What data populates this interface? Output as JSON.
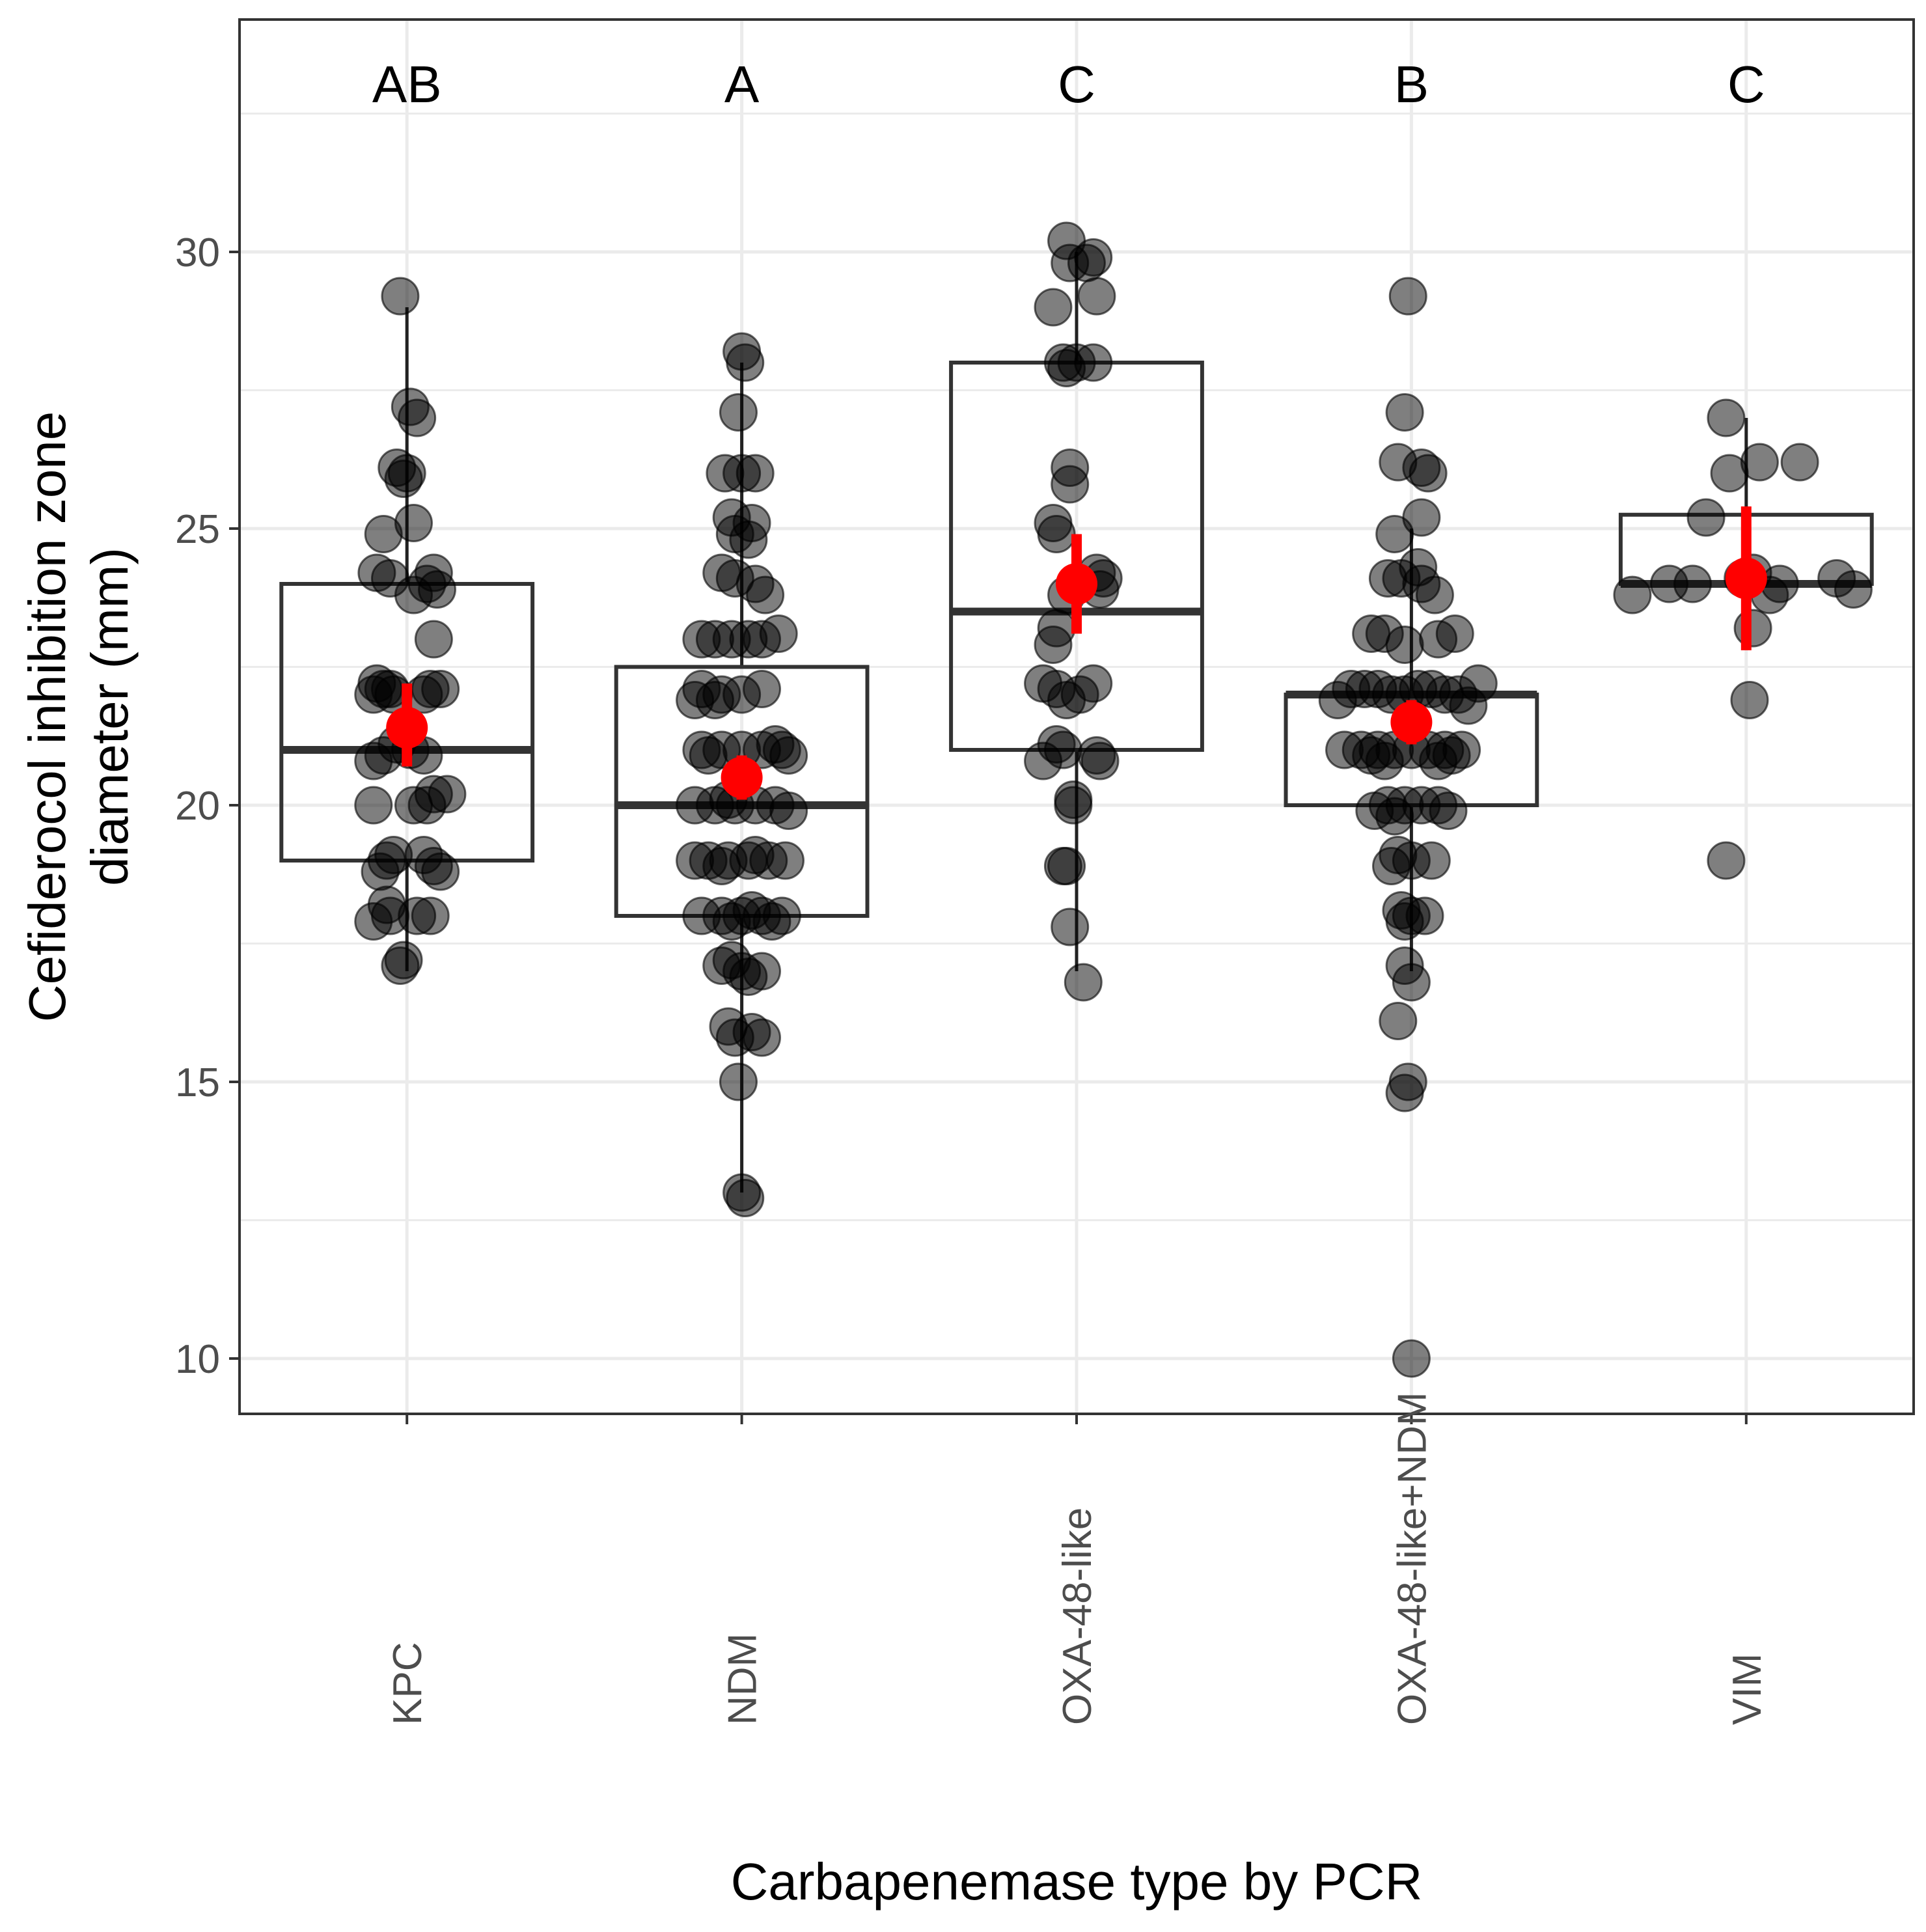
{
  "chart_data": {
    "type": "boxplot",
    "title": "",
    "xlabel": "Carbapenemase type by PCR",
    "ylabel_line1": "Cefiderocol inhibition zone",
    "ylabel_line2": "diameter (mm)",
    "ylim": [
      9,
      34.2
    ],
    "yticks": [
      10,
      15,
      20,
      25,
      30
    ],
    "ytick_labels": [
      "10",
      "15",
      "20",
      "25",
      "30"
    ],
    "grid": true,
    "categories": [
      "KPC",
      "NDM",
      "OXA-48-like",
      "OXA-48-like+NDM",
      "VIM"
    ],
    "significance_letters": [
      "AB",
      "A",
      "C",
      "B",
      "C"
    ],
    "boxes": [
      {
        "q1": 19,
        "median": 21,
        "q3": 24,
        "whisker_low": 17,
        "whisker_high": 29
      },
      {
        "q1": 18,
        "median": 20,
        "q3": 22.5,
        "whisker_low": 13,
        "whisker_high": 28
      },
      {
        "q1": 21,
        "median": 23.5,
        "q3": 28,
        "whisker_low": 17,
        "whisker_high": 30
      },
      {
        "q1": 20,
        "median": 22,
        "q3": 22,
        "whisker_low": 17,
        "whisker_high": 25
      },
      {
        "q1": 24,
        "median": 24,
        "q3": 25.25,
        "whisker_low": 24,
        "whisker_high": 27
      }
    ],
    "means": [
      {
        "mean": 21.4,
        "ci_low": 20.7,
        "ci_high": 22.2
      },
      {
        "mean": 20.5,
        "ci_low": 20.1,
        "ci_high": 20.9
      },
      {
        "mean": 24.0,
        "ci_low": 23.1,
        "ci_high": 24.9
      },
      {
        "mean": 21.5,
        "ci_low": 21.1,
        "ci_high": 21.9
      },
      {
        "mean": 24.1,
        "ci_low": 22.8,
        "ci_high": 25.4
      }
    ],
    "points": [
      [
        [
          -0.02,
          29.2
        ],
        [
          0.01,
          27.2
        ],
        [
          0.03,
          27.0
        ],
        [
          -0.03,
          26.1
        ],
        [
          0.0,
          26.0
        ],
        [
          -0.01,
          25.9
        ],
        [
          0.02,
          25.1
        ],
        [
          -0.07,
          24.9
        ],
        [
          -0.09,
          24.2
        ],
        [
          0.08,
          24.2
        ],
        [
          -0.05,
          24.1
        ],
        [
          0.06,
          24.0
        ],
        [
          0.09,
          23.9
        ],
        [
          0.02,
          23.8
        ],
        [
          0.08,
          23.0
        ],
        [
          -0.09,
          22.2
        ],
        [
          -0.07,
          22.1
        ],
        [
          -0.05,
          22.1
        ],
        [
          0.1,
          22.1
        ],
        [
          0.07,
          22.1
        ],
        [
          -0.1,
          22.0
        ],
        [
          -0.04,
          22.0
        ],
        [
          0.05,
          22.0
        ],
        [
          -0.03,
          21.1
        ],
        [
          0.01,
          21.0
        ],
        [
          -0.07,
          20.9
        ],
        [
          0.05,
          20.9
        ],
        [
          -0.1,
          20.8
        ],
        [
          0.08,
          20.2
        ],
        [
          0.12,
          20.2
        ],
        [
          -0.1,
          20.0
        ],
        [
          0.02,
          20.0
        ],
        [
          0.06,
          20.0
        ],
        [
          -0.04,
          19.1
        ],
        [
          0.05,
          19.1
        ],
        [
          -0.06,
          19.0
        ],
        [
          0.08,
          18.9
        ],
        [
          -0.08,
          18.8
        ],
        [
          0.1,
          18.8
        ],
        [
          -0.06,
          18.2
        ],
        [
          -0.1,
          17.9
        ],
        [
          -0.05,
          18.0
        ],
        [
          0.03,
          18.0
        ],
        [
          0.07,
          18.0
        ],
        [
          -0.01,
          17.2
        ],
        [
          -0.02,
          17.1
        ]
      ],
      [
        [
          0.0,
          28.2
        ],
        [
          0.01,
          28.0
        ],
        [
          -0.01,
          27.1
        ],
        [
          -0.05,
          26.0
        ],
        [
          0.0,
          26.0
        ],
        [
          0.04,
          26.0
        ],
        [
          -0.03,
          25.2
        ],
        [
          0.03,
          25.1
        ],
        [
          -0.02,
          24.9
        ],
        [
          0.02,
          24.8
        ],
        [
          -0.06,
          24.2
        ],
        [
          -0.02,
          24.1
        ],
        [
          0.04,
          24.0
        ],
        [
          0.07,
          23.8
        ],
        [
          -0.12,
          23.0
        ],
        [
          -0.08,
          23.0
        ],
        [
          -0.03,
          23.0
        ],
        [
          0.02,
          23.0
        ],
        [
          0.06,
          23.0
        ],
        [
          0.11,
          23.1
        ],
        [
          -0.12,
          22.1
        ],
        [
          -0.06,
          22.0
        ],
        [
          0.0,
          22.0
        ],
        [
          0.06,
          22.1
        ],
        [
          -0.14,
          21.9
        ],
        [
          -0.08,
          21.9
        ],
        [
          0.1,
          21.1
        ],
        [
          -0.12,
          21.0
        ],
        [
          -0.06,
          21.0
        ],
        [
          0.0,
          21.0
        ],
        [
          0.06,
          21.0
        ],
        [
          0.12,
          21.0
        ],
        [
          -0.1,
          20.9
        ],
        [
          0.14,
          20.9
        ],
        [
          -0.14,
          20.0
        ],
        [
          -0.08,
          20.0
        ],
        [
          -0.02,
          20.0
        ],
        [
          0.04,
          20.0
        ],
        [
          0.1,
          20.0
        ],
        [
          0.14,
          19.9
        ],
        [
          -0.04,
          20.1
        ],
        [
          -0.14,
          19.0
        ],
        [
          -0.1,
          19.0
        ],
        [
          -0.04,
          19.0
        ],
        [
          0.02,
          19.0
        ],
        [
          0.08,
          19.0
        ],
        [
          0.13,
          19.0
        ],
        [
          -0.06,
          18.9
        ],
        [
          0.04,
          19.1
        ],
        [
          -0.12,
          18.0
        ],
        [
          -0.06,
          18.0
        ],
        [
          0.0,
          18.0
        ],
        [
          0.06,
          18.0
        ],
        [
          0.12,
          18.0
        ],
        [
          0.09,
          17.9
        ],
        [
          -0.03,
          17.9
        ],
        [
          0.03,
          18.1
        ],
        [
          -0.06,
          17.1
        ],
        [
          0.0,
          17.0
        ],
        [
          0.06,
          17.0
        ],
        [
          0.02,
          16.9
        ],
        [
          -0.03,
          17.2
        ],
        [
          -0.04,
          16.0
        ],
        [
          0.03,
          15.9
        ],
        [
          -0.02,
          15.8
        ],
        [
          0.06,
          15.8
        ],
        [
          -0.01,
          15.0
        ],
        [
          0.0,
          13.0
        ],
        [
          0.01,
          12.9
        ]
      ],
      [
        [
          -0.03,
          30.2
        ],
        [
          -0.02,
          29.8
        ],
        [
          0.03,
          29.8
        ],
        [
          0.05,
          29.9
        ],
        [
          -0.07,
          29.0
        ],
        [
          0.06,
          29.2
        ],
        [
          -0.04,
          28.0
        ],
        [
          0.0,
          28.0
        ],
        [
          0.05,
          28.0
        ],
        [
          -0.03,
          27.9
        ],
        [
          -0.02,
          26.1
        ],
        [
          -0.02,
          25.8
        ],
        [
          -0.07,
          25.1
        ],
        [
          -0.06,
          24.9
        ],
        [
          0.06,
          24.2
        ],
        [
          0.08,
          24.1
        ],
        [
          0.07,
          23.9
        ],
        [
          -0.03,
          23.8
        ],
        [
          -0.06,
          23.2
        ],
        [
          -0.07,
          22.9
        ],
        [
          -0.1,
          22.2
        ],
        [
          -0.06,
          22.1
        ],
        [
          0.05,
          22.2
        ],
        [
          0.01,
          22.0
        ],
        [
          -0.03,
          21.9
        ],
        [
          -0.06,
          21.1
        ],
        [
          -0.04,
          21.0
        ],
        [
          0.06,
          20.9
        ],
        [
          -0.1,
          20.8
        ],
        [
          0.07,
          20.8
        ],
        [
          -0.01,
          20.1
        ],
        [
          -0.01,
          20.0
        ],
        [
          -0.04,
          18.9
        ],
        [
          -0.03,
          18.9
        ],
        [
          -0.02,
          17.8
        ],
        [
          0.02,
          16.8
        ]
      ],
      [
        [
          -0.01,
          29.2
        ],
        [
          -0.02,
          27.1
        ],
        [
          -0.04,
          26.2
        ],
        [
          0.03,
          26.1
        ],
        [
          0.05,
          26.0
        ],
        [
          0.03,
          25.2
        ],
        [
          -0.05,
          24.9
        ],
        [
          0.02,
          24.3
        ],
        [
          -0.07,
          24.1
        ],
        [
          -0.03,
          24.1
        ],
        [
          0.03,
          24.0
        ],
        [
          0.07,
          23.8
        ],
        [
          -0.12,
          23.1
        ],
        [
          -0.08,
          23.1
        ],
        [
          0.08,
          23.0
        ],
        [
          0.13,
          23.1
        ],
        [
          -0.02,
          22.9
        ],
        [
          -0.18,
          22.1
        ],
        [
          -0.14,
          22.1
        ],
        [
          -0.1,
          22.1
        ],
        [
          -0.06,
          22.0
        ],
        [
          -0.02,
          22.0
        ],
        [
          0.02,
          22.1
        ],
        [
          0.06,
          22.1
        ],
        [
          0.1,
          22.0
        ],
        [
          0.14,
          22.0
        ],
        [
          0.2,
          22.2
        ],
        [
          -0.22,
          21.9
        ],
        [
          0.17,
          21.8
        ],
        [
          -0.2,
          21.0
        ],
        [
          -0.15,
          21.0
        ],
        [
          -0.1,
          21.0
        ],
        [
          -0.05,
          21.0
        ],
        [
          0.0,
          21.0
        ],
        [
          0.05,
          21.0
        ],
        [
          0.1,
          21.0
        ],
        [
          0.15,
          21.0
        ],
        [
          -0.12,
          20.9
        ],
        [
          0.12,
          20.9
        ],
        [
          -0.08,
          20.8
        ],
        [
          0.08,
          20.8
        ],
        [
          -0.07,
          20.0
        ],
        [
          -0.02,
          20.0
        ],
        [
          0.03,
          20.0
        ],
        [
          0.08,
          20.0
        ],
        [
          -0.11,
          19.9
        ],
        [
          0.11,
          19.9
        ],
        [
          -0.05,
          19.8
        ],
        [
          -0.04,
          19.1
        ],
        [
          0.0,
          19.0
        ],
        [
          0.06,
          19.0
        ],
        [
          -0.06,
          18.9
        ],
        [
          -0.03,
          18.1
        ],
        [
          0.0,
          18.0
        ],
        [
          0.04,
          18.0
        ],
        [
          -0.02,
          17.9
        ],
        [
          -0.02,
          17.1
        ],
        [
          0.0,
          16.8
        ],
        [
          -0.04,
          16.1
        ],
        [
          -0.01,
          15.0
        ],
        [
          -0.02,
          14.8
        ],
        [
          0.0,
          10.0
        ]
      ],
      [
        [
          -0.06,
          27.0
        ],
        [
          0.04,
          26.2
        ],
        [
          0.16,
          26.2
        ],
        [
          -0.05,
          26.0
        ],
        [
          -0.12,
          25.2
        ],
        [
          -0.01,
          24.1
        ],
        [
          -0.16,
          24.0
        ],
        [
          0.02,
          24.2
        ],
        [
          0.1,
          24.0
        ],
        [
          0.27,
          24.1
        ],
        [
          -0.23,
          24.0
        ],
        [
          -0.34,
          23.8
        ],
        [
          0.32,
          23.9
        ],
        [
          0.07,
          23.8
        ],
        [
          0.02,
          23.2
        ],
        [
          0.01,
          21.9
        ],
        [
          -0.06,
          19.0
        ]
      ]
    ]
  }
}
